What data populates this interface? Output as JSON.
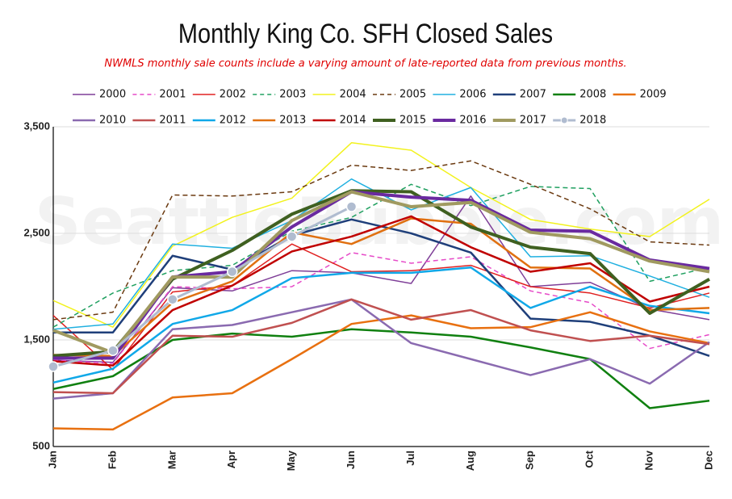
{
  "chart_data": {
    "type": "line",
    "title": "Monthly King Co. SFH Closed Sales",
    "subtitle": "NWMLS monthly sale counts include a varying amount of late-reported data from previous months.",
    "watermark": "SeattleBubble.com",
    "categories": [
      "Jan",
      "Feb",
      "Mar",
      "Apr",
      "May",
      "Jun",
      "Jul",
      "Aug",
      "Sep",
      "Oct",
      "Nov",
      "Dec"
    ],
    "ylim": [
      500,
      3500
    ],
    "yticks": [
      500,
      {
        "value": 1500,
        "label": "1,500"
      },
      {
        "value": 2500,
        "label": "2,500"
      },
      {
        "value": 3500,
        "label": "3,500"
      }
    ],
    "grid": true,
    "legend": "top",
    "series": [
      {
        "name": "2000",
        "color": "#7f3f98",
        "width": 1.5,
        "values": [
          1310,
          1290,
          1990,
          1960,
          2150,
          2130,
          2030,
          2850,
          2000,
          2040,
          1790,
          1690
        ]
      },
      {
        "name": "2001",
        "color": "#e64ac8",
        "width": 1.5,
        "dash": true,
        "values": [
          1310,
          1280,
          2000,
          1980,
          2000,
          2320,
          2220,
          2280,
          1960,
          1850,
          1420,
          1550
        ]
      },
      {
        "name": "2002",
        "color": "#e02020",
        "width": 1.5,
        "values": [
          1730,
          1220,
          1950,
          2010,
          2400,
          2140,
          2150,
          2200,
          2000,
          1940,
          1800,
          1940
        ]
      },
      {
        "name": "2003",
        "color": "#20a060",
        "width": 1.5,
        "dash": true,
        "values": [
          1620,
          1940,
          2150,
          2200,
          2520,
          2650,
          2960,
          2760,
          2940,
          2920,
          2050,
          2180
        ]
      },
      {
        "name": "2004",
        "color": "#f2f21e",
        "width": 1.5,
        "values": [
          1870,
          1620,
          2380,
          2650,
          2830,
          3350,
          3280,
          2930,
          2630,
          2540,
          2470,
          2820
        ]
      },
      {
        "name": "2005",
        "color": "#6b3a10",
        "width": 1.5,
        "dash": true,
        "values": [
          1690,
          1760,
          2860,
          2850,
          2890,
          3140,
          3090,
          3180,
          2960,
          2730,
          2420,
          2390
        ]
      },
      {
        "name": "2006",
        "color": "#20b0e0",
        "width": 1.5,
        "values": [
          1600,
          1650,
          2400,
          2360,
          2620,
          3010,
          2720,
          2930,
          2280,
          2290,
          2100,
          1900
        ]
      },
      {
        "name": "2007",
        "color": "#1f3f7a",
        "width": 2.5,
        "values": [
          1570,
          1570,
          2290,
          2160,
          2480,
          2630,
          2500,
          2320,
          1700,
          1670,
          1540,
          1350
        ]
      },
      {
        "name": "2008",
        "color": "#108010",
        "width": 2.5,
        "values": [
          1040,
          1160,
          1500,
          1560,
          1530,
          1600,
          1570,
          1530,
          1430,
          1320,
          860,
          930
        ]
      },
      {
        "name": "2009",
        "color": "#e87010",
        "width": 2.5,
        "values": [
          670,
          660,
          960,
          1000,
          1320,
          1650,
          1730,
          1610,
          1620,
          1760,
          1580,
          1470
        ]
      },
      {
        "name": "2010",
        "color": "#8a6ab0",
        "width": 2.5,
        "values": [
          950,
          1000,
          1600,
          1640,
          1760,
          1880,
          1470,
          1320,
          1170,
          1320,
          1090,
          1480
        ]
      },
      {
        "name": "2011",
        "color": "#c05050",
        "width": 2.5,
        "values": [
          1010,
          1000,
          1540,
          1530,
          1660,
          1880,
          1690,
          1780,
          1590,
          1490,
          1540,
          1460
        ]
      },
      {
        "name": "2012",
        "color": "#10a8e8",
        "width": 2.5,
        "values": [
          1100,
          1230,
          1650,
          1780,
          2080,
          2130,
          2130,
          2180,
          1800,
          2000,
          1820,
          1750
        ]
      },
      {
        "name": "2013",
        "color": "#e07010",
        "width": 2.5,
        "values": [
          1360,
          1350,
          1850,
          2050,
          2510,
          2400,
          2640,
          2590,
          2180,
          2170,
          1780,
          1800
        ]
      },
      {
        "name": "2014",
        "color": "#c00000",
        "width": 2.5,
        "values": [
          1300,
          1260,
          1780,
          2010,
          2330,
          2470,
          2660,
          2370,
          2140,
          2220,
          1860,
          2000
        ]
      },
      {
        "name": "2015",
        "color": "#3f6020",
        "width": 4,
        "values": [
          1350,
          1390,
          2070,
          2340,
          2680,
          2900,
          2890,
          2560,
          2370,
          2310,
          1750,
          2070
        ]
      },
      {
        "name": "2016",
        "color": "#6a2aa0",
        "width": 4,
        "values": [
          1330,
          1330,
          2090,
          2140,
          2560,
          2890,
          2840,
          2810,
          2530,
          2520,
          2250,
          2170
        ]
      },
      {
        "name": "2017",
        "color": "#a09a60",
        "width": 4,
        "values": [
          1590,
          1380,
          2090,
          2090,
          2620,
          2890,
          2750,
          2790,
          2510,
          2450,
          2240,
          2140
        ]
      },
      {
        "name": "2018",
        "color": "#b0bcd0",
        "width": 3,
        "markers": true,
        "values": [
          1250,
          1400,
          1880,
          2140,
          2470,
          2750,
          null,
          null,
          null,
          null,
          null,
          null
        ]
      }
    ]
  }
}
